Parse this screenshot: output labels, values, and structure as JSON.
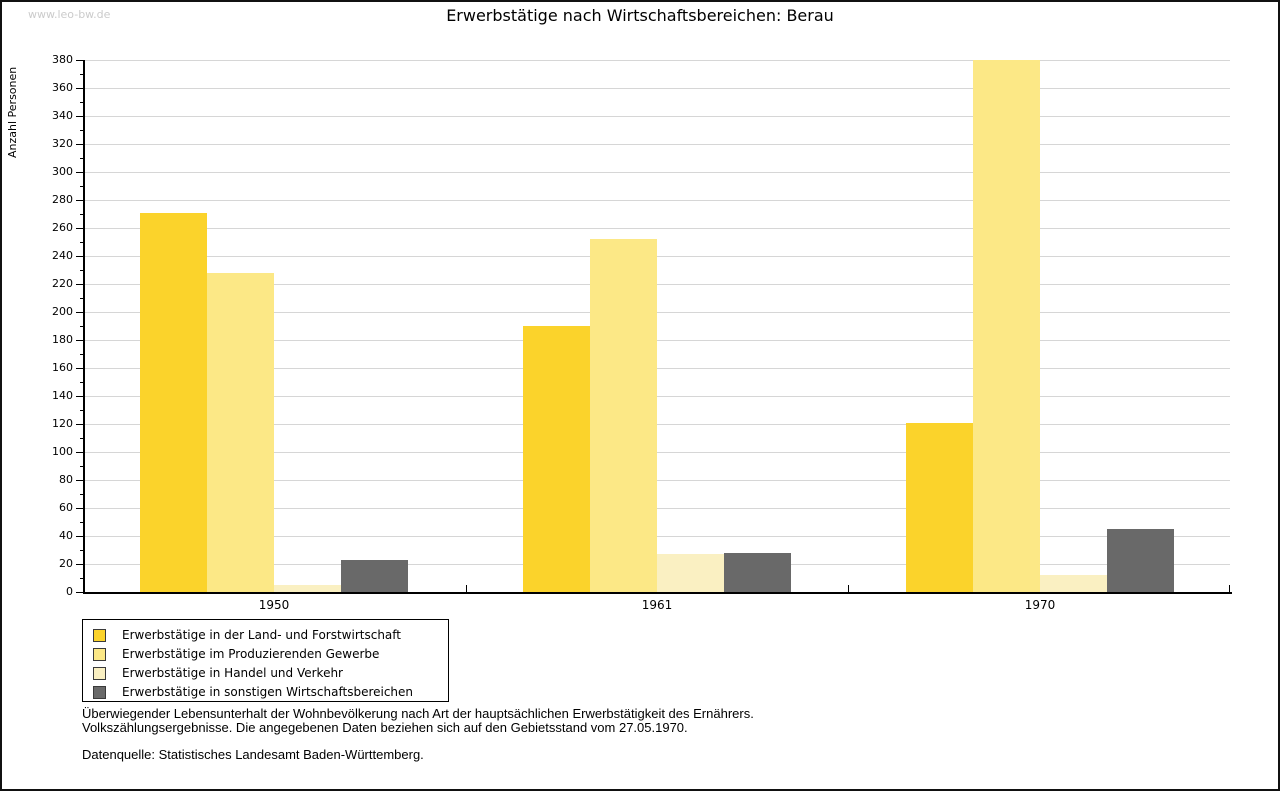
{
  "watermark": "www.leo-bw.de",
  "title": "Erwerbstätige nach Wirtschaftsbereichen: Berau",
  "chart_data": {
    "type": "bar",
    "title": "Erwerbstätige nach Wirtschaftsbereichen: Berau",
    "xlabel": "",
    "ylabel": "Anzahl Personen",
    "ylim": [
      0,
      380
    ],
    "ytick_step": 20,
    "ytick_minor_step": 10,
    "grid": true,
    "gridline_color": "#d6d6d6",
    "legend_position": "bottom-left",
    "categories": [
      "1950",
      "1961",
      "1970"
    ],
    "series": [
      {
        "name": "Erwerbstätige in der Land- und Forstwirtschaft",
        "color": "#FBD32B",
        "values": [
          271,
          190,
          121
        ]
      },
      {
        "name": "Erwerbstätige im Produzierenden Gewerbe",
        "color": "#FCE886",
        "values": [
          228,
          252,
          380
        ]
      },
      {
        "name": "Erwerbstätige in Handel und Verkehr",
        "color": "#FAF0C2",
        "values": [
          5,
          27,
          12
        ]
      },
      {
        "name": "Erwerbstätige in sonstigen Wirtschaftsbereichen",
        "color": "#696969",
        "values": [
          23,
          28,
          45
        ]
      }
    ]
  },
  "footer": {
    "line1": "Überwiegender Lebensunterhalt der Wohnbevölkerung nach Art der hauptsächlichen Erwerbstätigkeit des Ernährers.",
    "line2": "Volkszählungsergebnisse. Die angegebenen Daten beziehen sich auf den Gebietsstand vom 27.05.1970.",
    "source": "Datenquelle: Statistisches Landesamt Baden-Württemberg."
  }
}
